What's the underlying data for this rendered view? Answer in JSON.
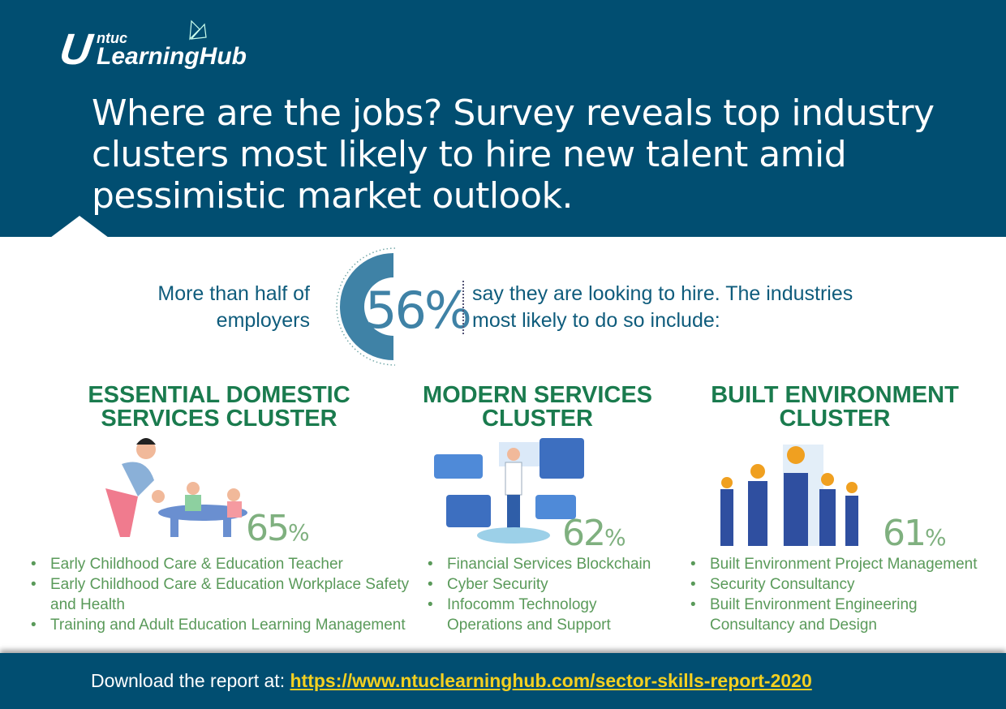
{
  "brand": {
    "logo_top": "ntuc",
    "logo_bottom": "LearningHub"
  },
  "title": "Where are the jobs? Survey reveals top industry clusters most likely to hire new talent amid pessimistic market outlook.",
  "lead": {
    "left": "More than half of employers",
    "stat": "56%",
    "right": "say they are looking to hire. The industries most likely to do so include:"
  },
  "clusters": [
    {
      "title": "Essential Domestic Services Cluster",
      "percent": "65",
      "items": [
        "Early Childhood Care & Education Teacher",
        "Early Childhood Care & Education Workplace Safety and Health",
        "Training and Adult Education Learning Management"
      ]
    },
    {
      "title": "Modern Services Cluster",
      "percent": "62",
      "items": [
        "Financial Services Blockchain",
        "Cyber Security",
        "Infocomm Technology Operations and Support"
      ]
    },
    {
      "title": "Built Environment Cluster",
      "percent": "61",
      "items": [
        "Built Environment Project Management",
        "Security Consultancy",
        "Built Environment Engineering Consultancy and Design"
      ]
    }
  ],
  "footer": {
    "label": "Download the report at:",
    "url": "https://www.ntuclearninghub.com/sector-skills-report-2020"
  },
  "colors": {
    "navy": "#014e71",
    "green": "#1a7b4e",
    "light_green": "#5a9a5a",
    "link": "#f4d020"
  }
}
